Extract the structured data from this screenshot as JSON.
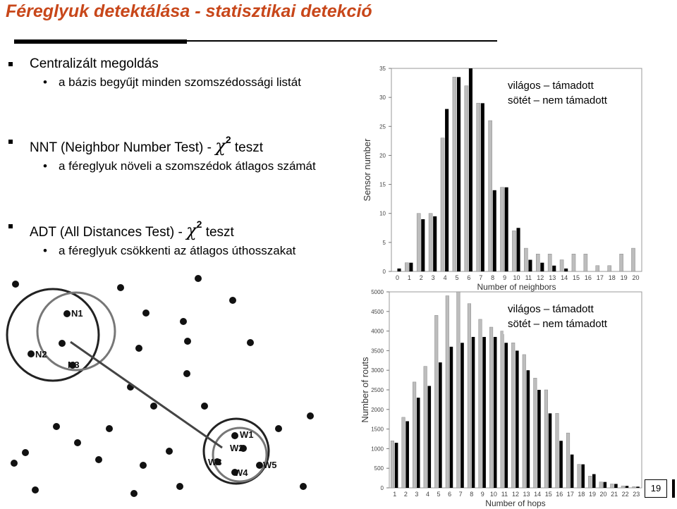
{
  "header": {
    "title": "Féreglyuk detektálása - statisztikai detekció"
  },
  "sections": [
    {
      "heading": "Centralizált megoldás",
      "items": [
        "a bázis begyűjt minden szomszédossági listát"
      ]
    },
    {
      "heading": "NNT (Neighbor Number Test) - ",
      "symbol": "χ",
      "superscript": "2",
      "suffix": " teszt",
      "items": [
        "a féreglyuk növeli a szomszédok átlagos számát"
      ]
    },
    {
      "heading": "ADT (All Distances Test) - ",
      "symbol": "χ",
      "superscript": "2",
      "suffix": " teszt",
      "items": [
        "a féreglyuk csökkenti az átlagos úthosszakat"
      ]
    }
  ],
  "diagram": {
    "labels": [
      "N1",
      "N2",
      "N3",
      "W1",
      "W2",
      "W3",
      "W4",
      "W5"
    ]
  },
  "chart_data": [
    {
      "type": "bar",
      "xlabel": "Number of neighbors",
      "ylabel": "Sensor number",
      "categories": [
        "0",
        "1",
        "2",
        "3",
        "4",
        "5",
        "6",
        "7",
        "8",
        "9",
        "10",
        "11",
        "12",
        "13",
        "14",
        "15",
        "16",
        "17",
        "18",
        "19",
        "20"
      ],
      "series": [
        {
          "name": "világos – támadott",
          "color": "#bdbdbd",
          "values": [
            0,
            1.5,
            10,
            10,
            23,
            33.5,
            32,
            29,
            26,
            14.5,
            7,
            4,
            3,
            3,
            2,
            3,
            3,
            1,
            1,
            3,
            4
          ]
        },
        {
          "name": "sötét – nem támadott",
          "color": "#000000",
          "values": [
            0.5,
            1.5,
            9,
            9.5,
            28,
            33.5,
            35,
            29,
            14,
            14.5,
            7.5,
            2,
            1.5,
            1,
            0.5,
            0,
            0,
            0,
            0,
            0,
            0
          ]
        }
      ],
      "ylim": [
        0,
        35
      ],
      "yticks": [
        0,
        5,
        10,
        15,
        20,
        25,
        30,
        35
      ],
      "legend": "upper right"
    },
    {
      "type": "bar",
      "xlabel": "Number of hops",
      "ylabel": "Number of routs",
      "categories": [
        "1",
        "2",
        "3",
        "4",
        "5",
        "6",
        "7",
        "8",
        "9",
        "10",
        "11",
        "12",
        "13",
        "14",
        "15",
        "16",
        "17",
        "18",
        "19",
        "20",
        "21",
        "22",
        "23"
      ],
      "series": [
        {
          "name": "világos – támadott",
          "color": "#bdbdbd",
          "values": [
            1200,
            1800,
            2700,
            3100,
            4400,
            4900,
            5000,
            4700,
            4300,
            4100,
            4000,
            3700,
            3400,
            2800,
            2500,
            1900,
            1400,
            600,
            300,
            150,
            100,
            50,
            30
          ]
        },
        {
          "name": "sötét – nem támadott",
          "color": "#000000",
          "values": [
            1150,
            1700,
            2300,
            2600,
            3200,
            3600,
            3700,
            3850,
            3850,
            3850,
            3700,
            3500,
            3000,
            2500,
            1900,
            1200,
            850,
            600,
            350,
            150,
            100,
            50,
            30
          ]
        }
      ],
      "ylim": [
        0,
        5000
      ],
      "yticks": [
        0,
        500,
        1000,
        1500,
        2000,
        2500,
        3000,
        3500,
        4000,
        4500,
        5000
      ],
      "legend": "upper right"
    }
  ],
  "footer": {
    "page": "19"
  }
}
